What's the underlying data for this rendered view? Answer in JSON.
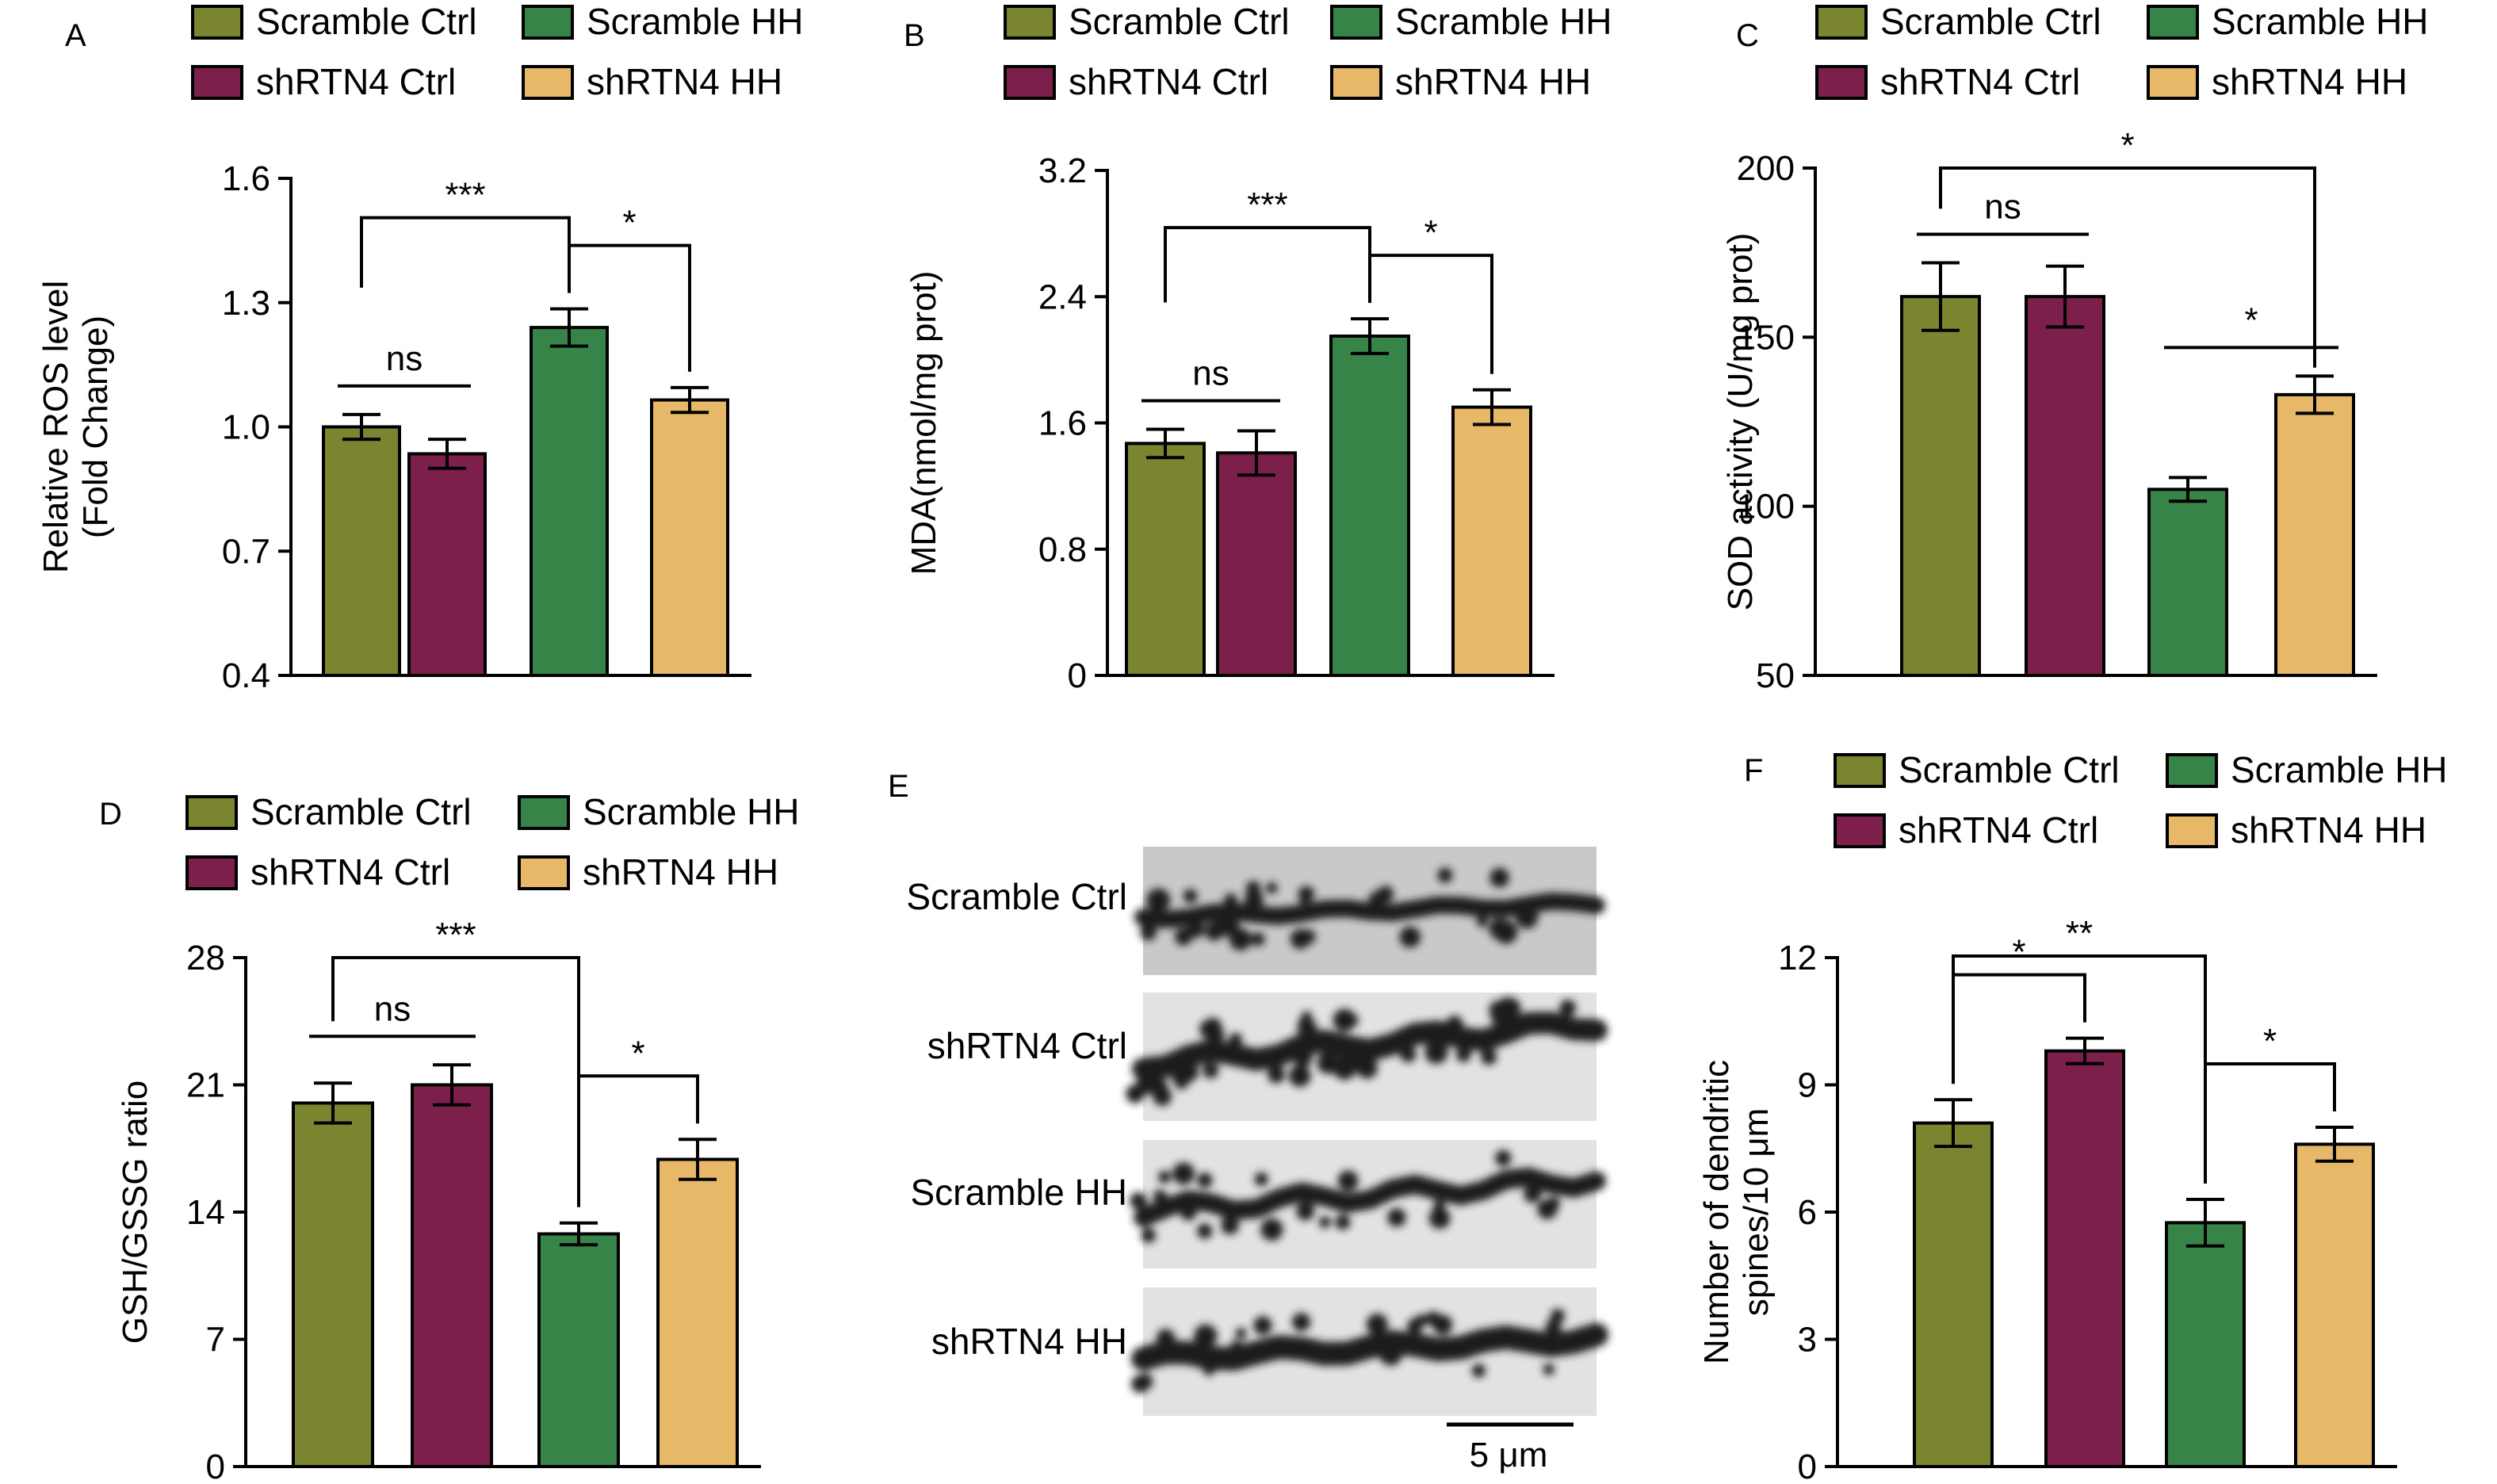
{
  "colors": {
    "Scramble Ctrl": "#7b8530",
    "Scramble HH": "#378449",
    "shRTN4 Ctrl": "#7c1f4a",
    "shRTN4 HH": "#e7b868"
  },
  "legend": {
    "items": [
      "Scramble Ctrl",
      "Scramble HH",
      "shRTN4 Ctrl",
      "shRTN4 HH"
    ]
  },
  "panel_e": {
    "letter": "E",
    "row_labels": [
      "Scramble Ctrl",
      "shRTN4 Ctrl",
      "Scramble HH",
      "shRTN4 HH"
    ],
    "scale_bar_label": "5 μm"
  },
  "chart_data": [
    {
      "panel": "A",
      "type": "bar",
      "categories": [
        "Scramble Ctrl",
        "shRTN4 Ctrl",
        "Scramble HH",
        "shRTN4 HH"
      ],
      "values": [
        1.0,
        0.935,
        1.24,
        1.065
      ],
      "errors": [
        0.03,
        0.035,
        0.045,
        0.03
      ],
      "ylabel": [
        "Relative ROS level",
        "(Fold Change)"
      ],
      "ylim": [
        0.4,
        1.6
      ],
      "yticks": [
        "0.4",
        "0.7",
        "1.0",
        "1.3",
        "1.6"
      ],
      "significance": [
        {
          "from": 0,
          "to": 1,
          "label": "ns",
          "style": "line"
        },
        {
          "from": 0,
          "to": 2,
          "label": "***",
          "style": "bracket"
        },
        {
          "from": 2,
          "to": 3,
          "label": "*",
          "style": "bracket"
        }
      ]
    },
    {
      "panel": "B",
      "type": "bar",
      "categories": [
        "Scramble Ctrl",
        "shRTN4 Ctrl",
        "Scramble HH",
        "shRTN4 HH"
      ],
      "values": [
        1.47,
        1.41,
        2.15,
        1.7
      ],
      "errors": [
        0.09,
        0.14,
        0.11,
        0.11
      ],
      "ylabel": [
        "MDA(nmol/mg prot)"
      ],
      "ylim": [
        0,
        3.2
      ],
      "yticks": [
        "0",
        "0.8",
        "1.6",
        "2.4",
        "3.2"
      ],
      "significance": [
        {
          "from": 0,
          "to": 1,
          "label": "ns",
          "style": "line"
        },
        {
          "from": 0,
          "to": 2,
          "label": "***",
          "style": "bracket"
        },
        {
          "from": 2,
          "to": 3,
          "label": "*",
          "style": "bracket"
        }
      ]
    },
    {
      "panel": "C",
      "type": "bar",
      "categories": [
        "Scramble Ctrl",
        "shRTN4 Ctrl",
        "Scramble HH",
        "shRTN4 HH"
      ],
      "values": [
        162,
        162,
        105,
        133
      ],
      "errors": [
        10,
        9,
        3.5,
        5.5
      ],
      "ylabel": [
        "SOD activity (U/mg prot)"
      ],
      "ylim": [
        50,
        200
      ],
      "yticks": [
        "50",
        "100",
        "150",
        "200"
      ],
      "significance": [
        {
          "from": 0,
          "to": 1,
          "label": "ns",
          "style": "line"
        },
        {
          "from": 0,
          "to": 3,
          "label": "*",
          "style": "bracket-long"
        },
        {
          "from": 2,
          "to": 3,
          "label": "*",
          "style": "line"
        }
      ]
    },
    {
      "panel": "D",
      "type": "bar",
      "categories": [
        "Scramble Ctrl",
        "shRTN4 Ctrl",
        "Scramble HH",
        "shRTN4 HH"
      ],
      "values": [
        20.0,
        21.0,
        12.8,
        16.9
      ],
      "errors": [
        1.1,
        1.1,
        0.6,
        1.1
      ],
      "ylabel": [
        "GSH/GSSG ratio"
      ],
      "ylim": [
        0,
        28
      ],
      "yticks": [
        "0",
        "7",
        "14",
        "21",
        "28"
      ],
      "significance": [
        {
          "from": 0,
          "to": 1,
          "label": "ns",
          "style": "line"
        },
        {
          "from": 0,
          "to": 2,
          "label": "***",
          "style": "bracket"
        },
        {
          "from": 2,
          "to": 3,
          "label": "*",
          "style": "bracket"
        }
      ]
    },
    {
      "panel": "F",
      "type": "bar",
      "categories": [
        "Scramble Ctrl",
        "shRTN4 Ctrl",
        "Scramble HH",
        "shRTN4 HH"
      ],
      "values": [
        8.1,
        9.8,
        5.75,
        7.6
      ],
      "errors": [
        0.55,
        0.3,
        0.55,
        0.4
      ],
      "ylabel": [
        "Number of dendritic",
        "spines/10 μm"
      ],
      "ylim": [
        0,
        12
      ],
      "yticks": [
        "0",
        "3",
        "6",
        "9",
        "12"
      ],
      "significance": [
        {
          "from": 0,
          "to": 1,
          "label": "*",
          "style": "bracket"
        },
        {
          "from": 0,
          "to": 2,
          "label": "**",
          "style": "bracket"
        },
        {
          "from": 2,
          "to": 3,
          "label": "*",
          "style": "bracket"
        }
      ]
    }
  ]
}
